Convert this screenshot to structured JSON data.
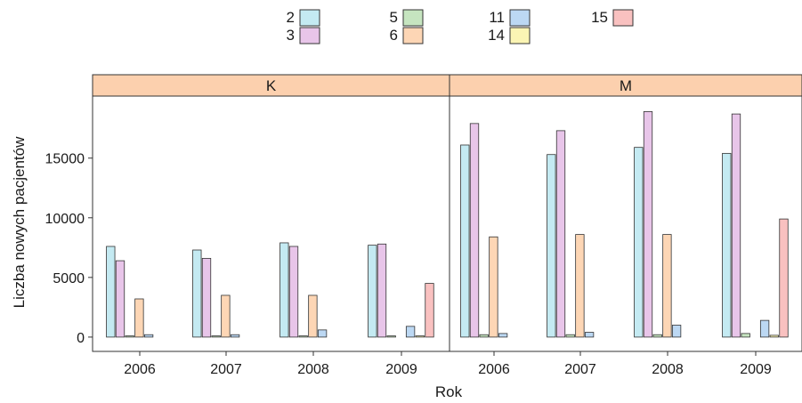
{
  "chart_data": {
    "type": "bar",
    "xlabel": "Rok",
    "ylabel": "Liczba nowych pacjentów",
    "ylim": [
      -1200,
      20200
    ],
    "yticks": [
      0,
      5000,
      10000,
      15000
    ],
    "grid": false,
    "legend_position": "top",
    "categories": [
      "2006",
      "2007",
      "2008",
      "2009"
    ],
    "panels": [
      {
        "label": "K",
        "series": [
          {
            "name": "2",
            "values": [
              7600,
              7300,
              7900,
              7700
            ]
          },
          {
            "name": "3",
            "values": [
              6400,
              6600,
              7600,
              7800
            ]
          },
          {
            "name": "5",
            "values": [
              100,
              100,
              100,
              100
            ]
          },
          {
            "name": "6",
            "values": [
              3200,
              3500,
              3500,
              0
            ]
          },
          {
            "name": "11",
            "values": [
              200,
              200,
              600,
              900
            ]
          },
          {
            "name": "14",
            "values": [
              0,
              0,
              0,
              100
            ]
          },
          {
            "name": "15",
            "values": [
              0,
              0,
              0,
              4500
            ]
          }
        ]
      },
      {
        "label": "M",
        "series": [
          {
            "name": "2",
            "values": [
              16100,
              15300,
              15900,
              15400
            ]
          },
          {
            "name": "3",
            "values": [
              17900,
              17300,
              18900,
              18700
            ]
          },
          {
            "name": "5",
            "values": [
              200,
              200,
              200,
              300
            ]
          },
          {
            "name": "6",
            "values": [
              8400,
              8600,
              8600,
              0
            ]
          },
          {
            "name": "11",
            "values": [
              300,
              400,
              1000,
              1400
            ]
          },
          {
            "name": "14",
            "values": [
              0,
              0,
              0,
              150
            ]
          },
          {
            "name": "15",
            "values": [
              0,
              0,
              0,
              9900
            ]
          }
        ]
      }
    ],
    "legend": [
      {
        "name": "2",
        "color": "#c4eaf2"
      },
      {
        "name": "3",
        "color": "#e8c5e9"
      },
      {
        "name": "5",
        "color": "#c6e5c0"
      },
      {
        "name": "6",
        "color": "#fdd6b5"
      },
      {
        "name": "11",
        "color": "#bcd8f3"
      },
      {
        "name": "14",
        "color": "#fbf5b4"
      },
      {
        "name": "15",
        "color": "#f9c1c0"
      }
    ],
    "strip_color": "#fcd0ae"
  }
}
